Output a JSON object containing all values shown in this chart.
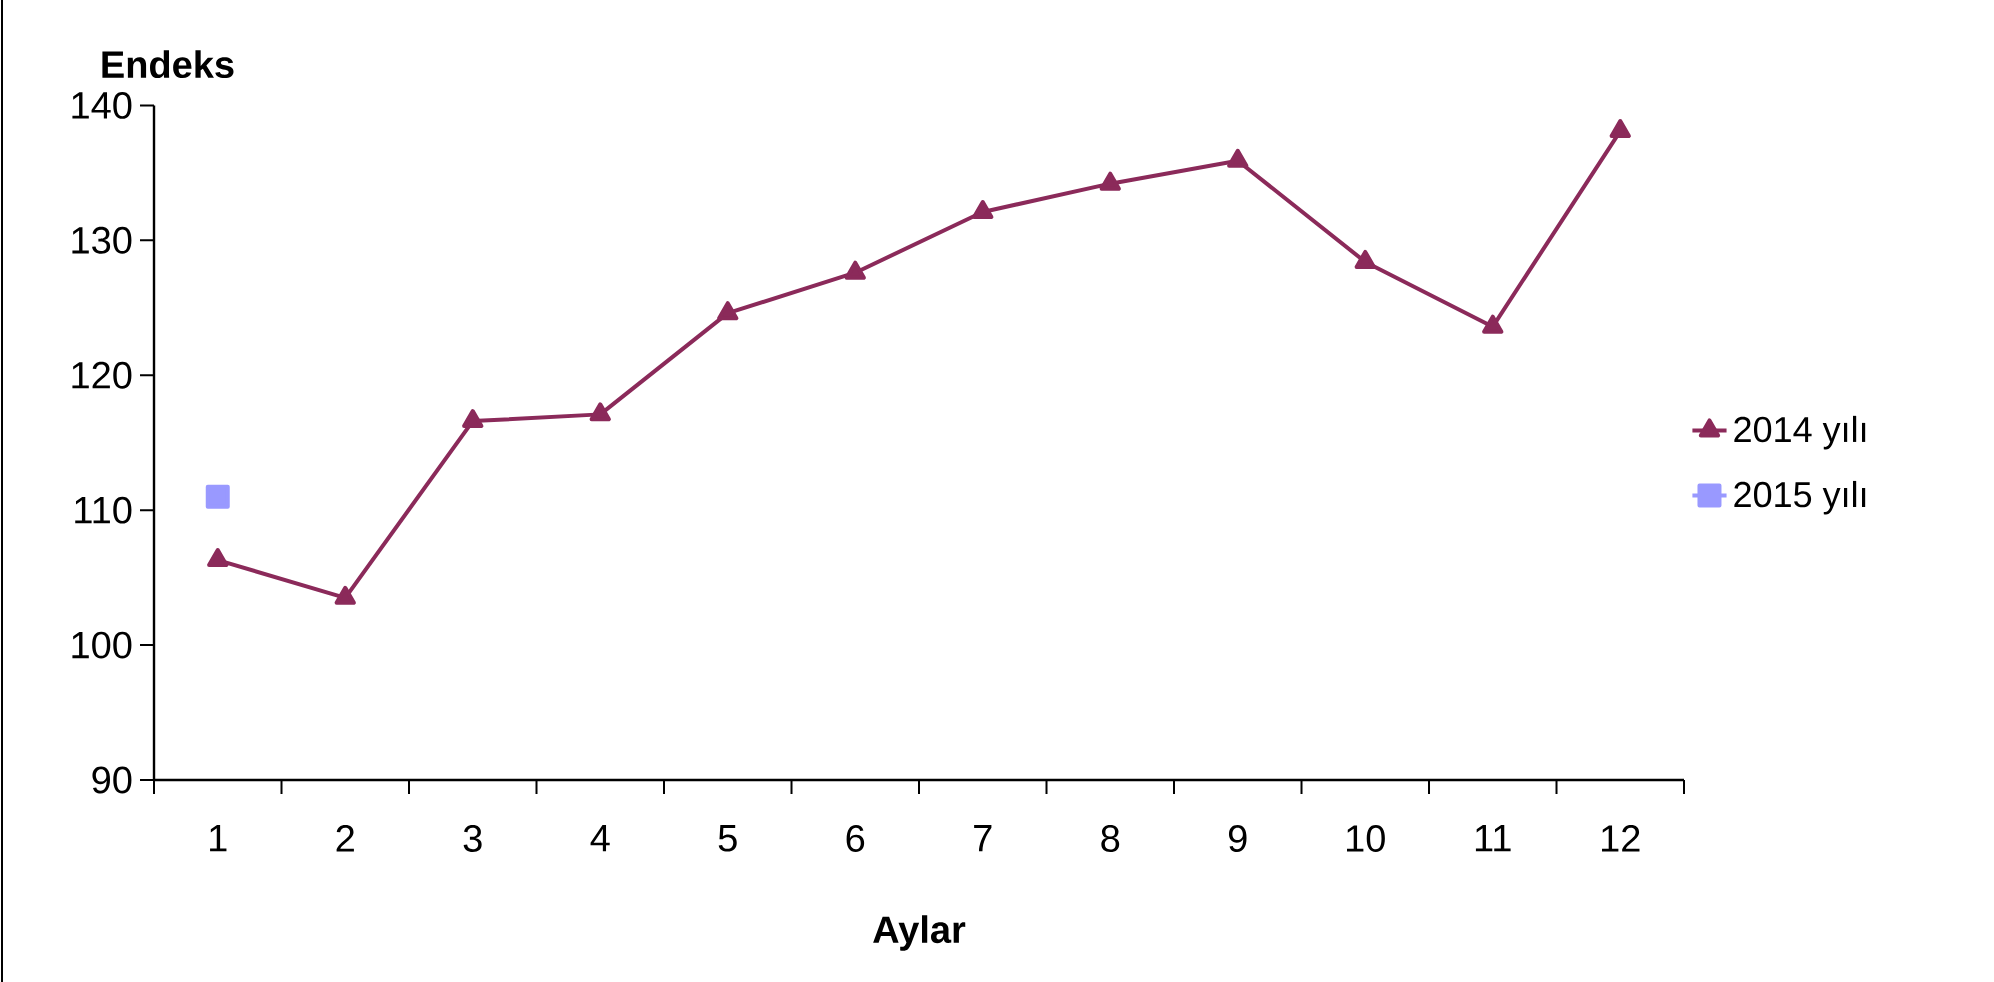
{
  "chart_data": {
    "type": "line",
    "ylabel": "Endeks",
    "xlabel": "Aylar",
    "categories": [
      "1",
      "2",
      "3",
      "4",
      "5",
      "6",
      "7",
      "8",
      "9",
      "10",
      "11",
      "12"
    ],
    "series": [
      {
        "name": "2014 yılı",
        "color": "#8b2a5a",
        "marker": "triangle",
        "values": [
          106.3,
          103.5,
          116.6,
          117.1,
          124.6,
          127.6,
          132.1,
          134.2,
          135.9,
          128.4,
          123.6,
          138.1
        ]
      },
      {
        "name": "2015 yılı",
        "color": "#9999ff",
        "marker": "square",
        "values": [
          111.0,
          null,
          null,
          null,
          null,
          null,
          null,
          null,
          null,
          null,
          null,
          null
        ]
      }
    ],
    "ylim": [
      90,
      140
    ],
    "yticks": [
      90,
      100,
      110,
      120,
      130,
      140
    ],
    "legend": "right"
  }
}
